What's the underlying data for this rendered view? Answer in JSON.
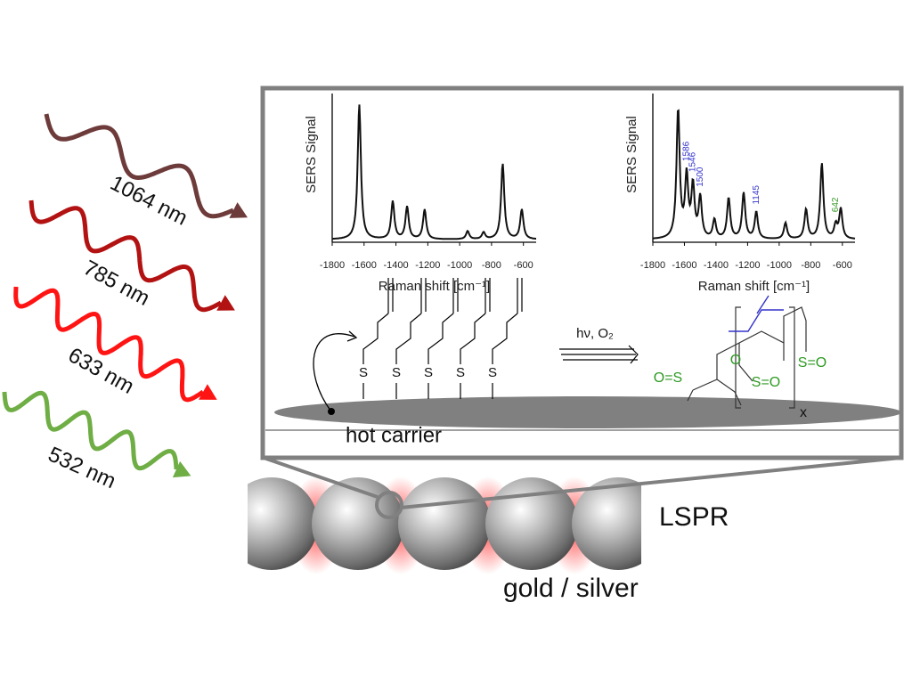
{
  "wavelengths": [
    {
      "label": "1064 nm",
      "color": "#6e3b3b"
    },
    {
      "label": "785 nm",
      "color": "#b31212"
    },
    {
      "label": "633 nm",
      "color": "#ff1414"
    },
    {
      "label": "532 nm",
      "color": "#6fad45"
    }
  ],
  "spectra": [
    {
      "ylabel": "SERS Signal",
      "xlabel": "Raman shift [cm⁻¹]",
      "xlim": [
        -1800,
        -520
      ],
      "xticks": [
        -1800,
        -1600,
        -1400,
        -1200,
        -1000,
        -800,
        -600
      ],
      "ylim": [
        0,
        110
      ],
      "peaks": [
        {
          "x": -1630,
          "h": 100
        },
        {
          "x": -1420,
          "h": 28
        },
        {
          "x": -1330,
          "h": 24
        },
        {
          "x": -1220,
          "h": 22
        },
        {
          "x": -950,
          "h": 6
        },
        {
          "x": -850,
          "h": 5
        },
        {
          "x": -730,
          "h": 56
        },
        {
          "x": -610,
          "h": 22
        }
      ],
      "peak_labels": []
    },
    {
      "ylabel": "SERS Signal",
      "xlabel": "Raman shift [cm⁻¹]",
      "xlim": [
        -1800,
        -520
      ],
      "xticks": [
        -1800,
        -1600,
        -1400,
        -1200,
        -1000,
        -800,
        -600
      ],
      "ylim": [
        0,
        110
      ],
      "peaks": [
        {
          "x": -1640,
          "h": 95
        },
        {
          "x": -1586,
          "h": 45
        },
        {
          "x": -1546,
          "h": 38
        },
        {
          "x": -1500,
          "h": 30
        },
        {
          "x": -1410,
          "h": 14
        },
        {
          "x": -1320,
          "h": 30
        },
        {
          "x": -1225,
          "h": 34
        },
        {
          "x": -1145,
          "h": 20
        },
        {
          "x": -960,
          "h": 12
        },
        {
          "x": -830,
          "h": 22
        },
        {
          "x": -730,
          "h": 56
        },
        {
          "x": -642,
          "h": 10
        },
        {
          "x": -610,
          "h": 22
        }
      ],
      "peak_labels": [
        {
          "value": 1586,
          "color": "#3333cc"
        },
        {
          "value": 1546,
          "color": "#3333cc"
        },
        {
          "value": 1500,
          "color": "#3333cc"
        },
        {
          "value": 1145,
          "color": "#3333cc"
        },
        {
          "value": 642,
          "color": "#3a9a2a"
        }
      ]
    }
  ],
  "scheme": {
    "sulfur_labels": [
      "S",
      "S",
      "S",
      "S",
      "S"
    ],
    "conditions": "hν, O₂",
    "product_labels": [
      "O=S",
      "O",
      "S=O",
      "S=O"
    ],
    "repeat": "x",
    "hot_carrier": "hot carrier"
  },
  "lspr": "LSPR",
  "material": "gold / silver"
}
